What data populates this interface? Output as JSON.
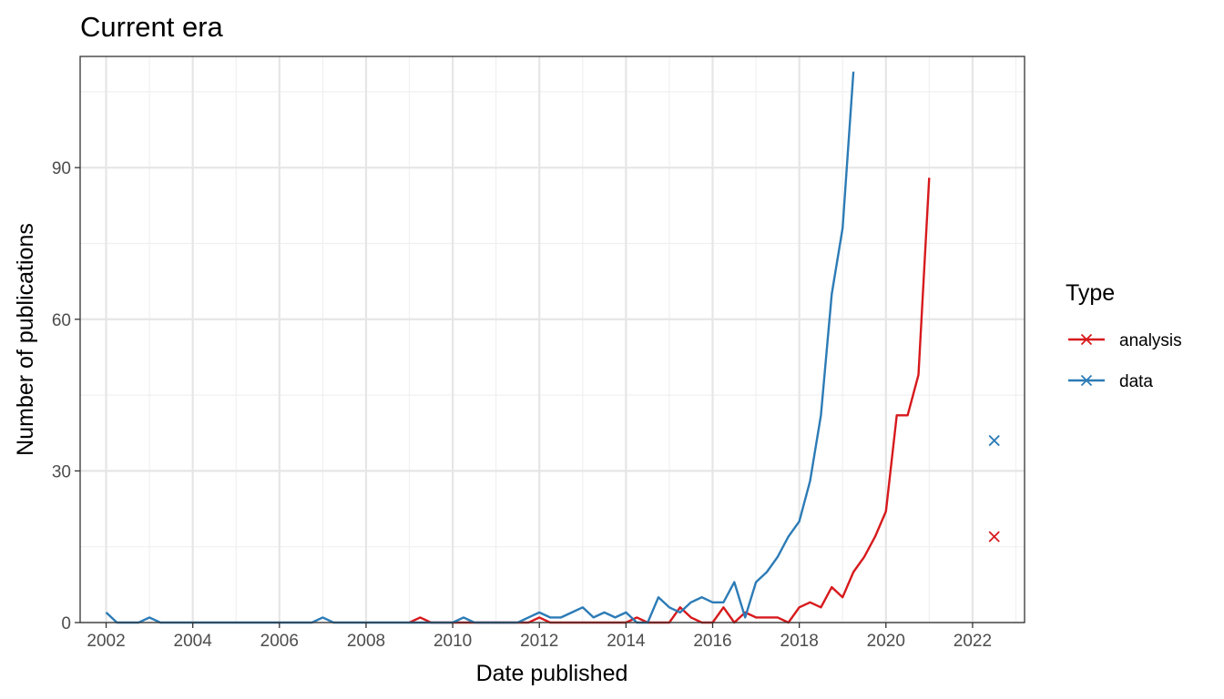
{
  "chart_data": {
    "type": "line",
    "title": "Current era",
    "xlabel": "Date published",
    "ylabel": "Number of publications",
    "x_unit": "year",
    "xlim": [
      2001.4,
      2023.2
    ],
    "ylim": [
      0,
      112
    ],
    "x_ticks": [
      2002,
      2004,
      2006,
      2008,
      2010,
      2012,
      2014,
      2016,
      2018,
      2020,
      2022
    ],
    "y_ticks": [
      0,
      30,
      60,
      90
    ],
    "grid": true,
    "legend": {
      "title": "Type",
      "position": "right"
    },
    "series": [
      {
        "name": "analysis",
        "color": "#d7191c",
        "x": [
          2009.0,
          2009.25,
          2009.5,
          2009.75,
          2010.0,
          2010.25,
          2010.5,
          2010.75,
          2011.0,
          2011.25,
          2011.5,
          2011.75,
          2012.0,
          2012.25,
          2012.5,
          2012.75,
          2013.0,
          2013.25,
          2013.5,
          2013.75,
          2014.0,
          2014.25,
          2014.5,
          2014.75,
          2015.0,
          2015.25,
          2015.5,
          2015.75,
          2016.0,
          2016.25,
          2016.5,
          2016.75,
          2017.0,
          2017.25,
          2017.5,
          2017.75,
          2018.0,
          2018.25,
          2018.5,
          2018.75,
          2019.0,
          2019.25,
          2019.5,
          2019.75,
          2020.0,
          2020.25,
          2020.5,
          2020.75,
          2021.0,
          2021.25,
          2021.5,
          2021.75,
          2022.0
        ],
        "y": [
          0,
          1,
          0,
          0,
          0,
          0,
          0,
          0,
          0,
          0,
          0,
          0,
          1,
          0,
          0,
          0,
          0,
          0,
          0,
          0,
          0,
          1,
          0,
          0,
          0,
          3,
          1,
          0,
          0,
          3,
          0,
          2,
          1,
          1,
          1,
          0,
          3,
          4,
          3,
          7,
          5,
          10,
          13,
          17,
          22,
          41,
          41,
          49,
          88,
          null,
          null,
          null,
          null
        ],
        "outlier": {
          "x": 2022.5,
          "y": 17
        }
      },
      {
        "name": "data",
        "color": "#2c7bb6",
        "x": [
          2002.0,
          2002.25,
          2002.5,
          2002.75,
          2003.0,
          2003.25,
          2003.5,
          2003.75,
          2004.0,
          2004.25,
          2004.5,
          2004.75,
          2005.0,
          2005.25,
          2005.5,
          2005.75,
          2006.0,
          2006.25,
          2006.5,
          2006.75,
          2007.0,
          2007.25,
          2007.5,
          2007.75,
          2008.0,
          2008.25,
          2008.5,
          2008.75,
          2009.0,
          2009.25,
          2009.5,
          2009.75,
          2010.0,
          2010.25,
          2010.5,
          2010.75,
          2011.0,
          2011.25,
          2011.5,
          2011.75,
          2012.0,
          2012.25,
          2012.5,
          2012.75,
          2013.0,
          2013.25,
          2013.5,
          2013.75,
          2014.0,
          2014.25,
          2014.5,
          2014.75,
          2015.0,
          2015.25,
          2015.5,
          2015.75,
          2016.0,
          2016.25,
          2016.5,
          2016.75,
          2017.0,
          2017.25,
          2017.5,
          2017.75,
          2018.0,
          2018.25,
          2018.5,
          2018.75,
          2019.0,
          2019.25,
          2019.5,
          2019.75,
          2020.0,
          2020.25,
          2020.5,
          2020.75,
          2021.0,
          2021.25,
          2021.5,
          2021.75,
          2022.0
        ],
        "y": [
          2,
          0,
          0,
          0,
          1,
          0,
          0,
          0,
          0,
          0,
          0,
          0,
          0,
          0,
          0,
          0,
          0,
          0,
          0,
          0,
          1,
          0,
          0,
          0,
          0,
          0,
          0,
          0,
          0,
          0,
          0,
          0,
          0,
          1,
          0,
          0,
          0,
          0,
          0,
          1,
          2,
          1,
          1,
          2,
          3,
          1,
          2,
          1,
          2,
          0,
          0,
          5,
          3,
          2,
          4,
          5,
          4,
          4,
          8,
          1,
          8,
          10,
          13,
          17,
          20,
          28,
          41,
          65,
          78,
          109,
          null,
          null,
          null,
          null,
          null,
          null,
          null,
          null,
          null,
          null,
          null
        ],
        "outlier": {
          "x": 2022.5,
          "y": 36
        }
      }
    ]
  }
}
